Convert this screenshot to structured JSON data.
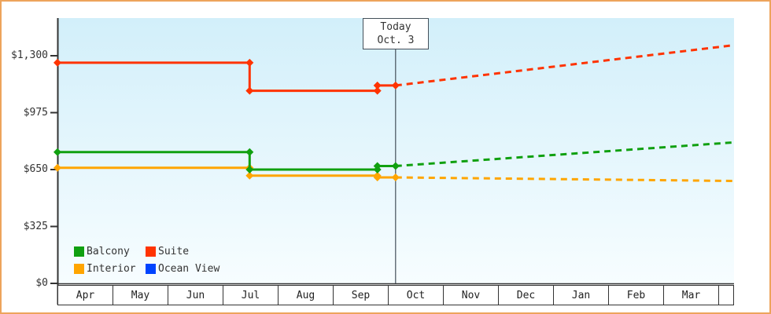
{
  "colors": {
    "frame_border": "#eda45c",
    "axis": "#333333",
    "text": "#333333",
    "plot_bg_top": "#d2effa",
    "plot_bg_bottom": "#f7fdff",
    "today_line": "#44505a",
    "balcony": "#10a010",
    "suite": "#ff3300",
    "interior": "#ffa500",
    "ocean_view": "#0044ff"
  },
  "today_flag": {
    "line1": "Today",
    "line2": "Oct. 3"
  },
  "y_axis": {
    "tick_labels": [
      "$1,300",
      "$975",
      "$650",
      "$325",
      "$0"
    ],
    "tick_values": [
      1300,
      975,
      650,
      325,
      0
    ]
  },
  "x_axis": {
    "month_labels": [
      "Apr",
      "May",
      "Jun",
      "Jul",
      "Aug",
      "Sep",
      "Oct",
      "Nov",
      "Dec",
      "Jan",
      "Feb",
      "Mar"
    ]
  },
  "legend": {
    "items": [
      {
        "label": "Balcony",
        "color": "#10a010"
      },
      {
        "label": "Suite",
        "color": "#ff3300"
      },
      {
        "label": "Interior",
        "color": "#ffa500"
      },
      {
        "label": "Ocean View",
        "color": "#0044ff"
      }
    ]
  },
  "chart_data": {
    "type": "line",
    "title": "",
    "units": "USD",
    "x_unit": "month offset from Apr (0 = Apr 1, 1 unit = 1 month)",
    "x_categories": [
      "Apr",
      "May",
      "Jun",
      "Jul",
      "Aug",
      "Sep",
      "Oct",
      "Nov",
      "Dec",
      "Jan",
      "Feb",
      "Mar"
    ],
    "xlim": [
      0,
      12.28
    ],
    "ylim": [
      0,
      1460
    ],
    "y_ticks": [
      0,
      325,
      650,
      975,
      1300
    ],
    "grid": false,
    "legend_position": "bottom-left",
    "today": {
      "label": "Oct. 3",
      "month_unit": 6.14
    },
    "notes": "Solid = price history with step changes; dashed = projected future price. Ocean View appears in legend but has no visible line.",
    "series": [
      {
        "name": "Ocean View",
        "color": "#0044ff",
        "solid": [],
        "projected": []
      },
      {
        "name": "Interior",
        "color": "#ffa500",
        "solid": [
          [
            0,
            660
          ],
          [
            3.49,
            660
          ],
          [
            3.49,
            615
          ],
          [
            5.81,
            615
          ],
          [
            5.81,
            605
          ],
          [
            6.14,
            605
          ]
        ],
        "projected": [
          [
            6.14,
            605
          ],
          [
            12.28,
            585
          ]
        ]
      },
      {
        "name": "Balcony",
        "color": "#10a010",
        "solid": [
          [
            0,
            750
          ],
          [
            3.49,
            750
          ],
          [
            3.49,
            650
          ],
          [
            5.81,
            650
          ],
          [
            5.81,
            670
          ],
          [
            6.14,
            670
          ]
        ],
        "projected": [
          [
            6.14,
            670
          ],
          [
            12.28,
            805
          ]
        ]
      },
      {
        "name": "Suite",
        "color": "#ff3300",
        "solid": [
          [
            0,
            1260
          ],
          [
            3.49,
            1260
          ],
          [
            3.49,
            1100
          ],
          [
            5.81,
            1100
          ],
          [
            5.81,
            1130
          ],
          [
            6.14,
            1130
          ]
        ],
        "projected": [
          [
            6.14,
            1130
          ],
          [
            12.28,
            1360
          ]
        ]
      }
    ]
  }
}
